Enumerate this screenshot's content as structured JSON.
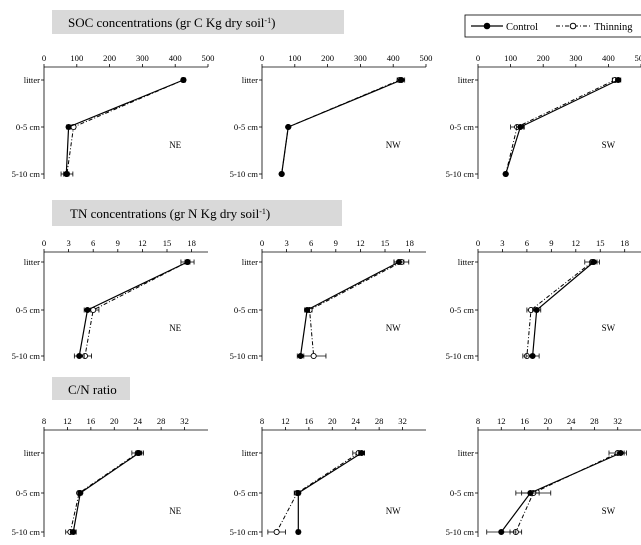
{
  "figure": {
    "section_titles": [
      "SOC concentrations (gr C Kg dry soil",
      "TN concentrations (gr N Kg dry soil",
      "C/N ratio"
    ],
    "unit_superscript": "-1",
    "legend": {
      "control": "Control",
      "thinning": "Thinning"
    }
  },
  "chart_data": [
    {
      "type": "line",
      "orientation": "horizontal",
      "row": 0,
      "col": 0,
      "label": "NE",
      "depths": [
        "litter",
        "0-5 cm",
        "5-10 cm"
      ],
      "xlim": [
        0,
        500
      ],
      "xticks": [
        0,
        100,
        200,
        300,
        400,
        500
      ],
      "series": [
        {
          "name": "Control",
          "values": [
            425,
            75,
            68
          ],
          "errors": [
            6,
            6,
            8
          ]
        },
        {
          "name": "Thinning",
          "values": [
            425,
            90,
            70
          ],
          "errors": [
            6,
            6,
            18
          ]
        }
      ]
    },
    {
      "type": "line",
      "orientation": "horizontal",
      "row": 0,
      "col": 1,
      "label": "NW",
      "depths": [
        "litter",
        "0-5 cm",
        "5-10 cm"
      ],
      "xlim": [
        0,
        500
      ],
      "xticks": [
        0,
        100,
        200,
        300,
        400,
        500
      ],
      "series": [
        {
          "name": "Control",
          "values": [
            425,
            80,
            60
          ],
          "errors": [
            10,
            3,
            4
          ]
        },
        {
          "name": "Thinning",
          "values": [
            420,
            80,
            60
          ],
          "errors": [
            8,
            3,
            4
          ]
        }
      ]
    },
    {
      "type": "line",
      "orientation": "horizontal",
      "row": 0,
      "col": 2,
      "label": "SW",
      "depths": [
        "litter",
        "0-5 cm",
        "5-10 cm"
      ],
      "xlim": [
        0,
        500
      ],
      "xticks": [
        0,
        100,
        200,
        300,
        400,
        500
      ],
      "series": [
        {
          "name": "Control",
          "values": [
            430,
            130,
            85
          ],
          "errors": [
            8,
            12,
            5
          ]
        },
        {
          "name": "Thinning",
          "values": [
            420,
            120,
            85
          ],
          "errors": [
            8,
            20,
            5
          ]
        }
      ]
    },
    {
      "type": "line",
      "orientation": "horizontal",
      "row": 1,
      "col": 0,
      "label": "NE",
      "depths": [
        "litter",
        "0-5 cm",
        "5-10 cm"
      ],
      "xlim": [
        0,
        20
      ],
      "xticks": [
        0,
        3,
        6,
        9,
        12,
        15,
        18
      ],
      "series": [
        {
          "name": "Control",
          "values": [
            17.5,
            5.3,
            4.3
          ],
          "errors": [
            0.3,
            0.4,
            0.6
          ]
        },
        {
          "name": "Thinning",
          "values": [
            17.5,
            6.0,
            5.0
          ],
          "errors": [
            0.8,
            0.7,
            0.8
          ]
        }
      ]
    },
    {
      "type": "line",
      "orientation": "horizontal",
      "row": 1,
      "col": 1,
      "label": "NW",
      "depths": [
        "litter",
        "0-5 cm",
        "5-10 cm"
      ],
      "xlim": [
        0,
        20
      ],
      "xticks": [
        0,
        3,
        6,
        9,
        12,
        15,
        18
      ],
      "series": [
        {
          "name": "Control",
          "values": [
            16.7,
            5.5,
            4.7
          ],
          "errors": [
            0.6,
            0.3,
            0.4
          ]
        },
        {
          "name": "Thinning",
          "values": [
            17.0,
            5.8,
            6.3
          ],
          "errors": [
            0.9,
            0.3,
            1.5
          ]
        }
      ]
    },
    {
      "type": "line",
      "orientation": "horizontal",
      "row": 1,
      "col": 2,
      "label": "SW",
      "depths": [
        "litter",
        "0-5 cm",
        "5-10 cm"
      ],
      "xlim": [
        0,
        20
      ],
      "xticks": [
        0,
        3,
        6,
        9,
        12,
        15,
        18
      ],
      "series": [
        {
          "name": "Control",
          "values": [
            14.2,
            7.2,
            6.7
          ],
          "errors": [
            0.4,
            0.5,
            0.8
          ]
        },
        {
          "name": "Thinning",
          "values": [
            14.0,
            6.5,
            6.0
          ],
          "errors": [
            0.9,
            0.5,
            0.5
          ]
        }
      ]
    },
    {
      "type": "line",
      "orientation": "horizontal",
      "row": 2,
      "col": 0,
      "label": "NE",
      "depths": [
        "litter",
        "0-5 cm",
        "5-10 cm"
      ],
      "xlim": [
        8,
        36
      ],
      "xticks": [
        8,
        12,
        16,
        20,
        24,
        28,
        32
      ],
      "series": [
        {
          "name": "Control",
          "values": [
            24.2,
            14.2,
            13.0
          ],
          "errors": [
            0.5,
            0.3,
            0.5
          ]
        },
        {
          "name": "Thinning",
          "values": [
            24.0,
            14.0,
            12.5
          ],
          "errors": [
            1.0,
            0.3,
            0.8
          ]
        }
      ]
    },
    {
      "type": "line",
      "orientation": "horizontal",
      "row": 2,
      "col": 1,
      "label": "NW",
      "depths": [
        "litter",
        "0-5 cm",
        "5-10 cm"
      ],
      "xlim": [
        8,
        36
      ],
      "xticks": [
        8,
        12,
        16,
        20,
        24,
        28,
        32
      ],
      "series": [
        {
          "name": "Control",
          "values": [
            25.0,
            14.2,
            14.2
          ],
          "errors": [
            0.5,
            0.3,
            0.3
          ]
        },
        {
          "name": "Thinning",
          "values": [
            24.5,
            14.0,
            10.5
          ],
          "errors": [
            1.0,
            0.5,
            1.5
          ]
        }
      ]
    },
    {
      "type": "line",
      "orientation": "horizontal",
      "row": 2,
      "col": 2,
      "label": "SW",
      "depths": [
        "litter",
        "0-5 cm",
        "5-10 cm"
      ],
      "xlim": [
        8,
        36
      ],
      "xticks": [
        8,
        12,
        16,
        20,
        24,
        28,
        32
      ],
      "series": [
        {
          "name": "Control",
          "values": [
            32.5,
            17.0,
            12.0
          ],
          "errors": [
            0.6,
            1.5,
            2.5
          ]
        },
        {
          "name": "Thinning",
          "values": [
            32.0,
            17.5,
            14.5
          ],
          "errors": [
            1.5,
            3.0,
            1.0
          ]
        }
      ]
    }
  ]
}
